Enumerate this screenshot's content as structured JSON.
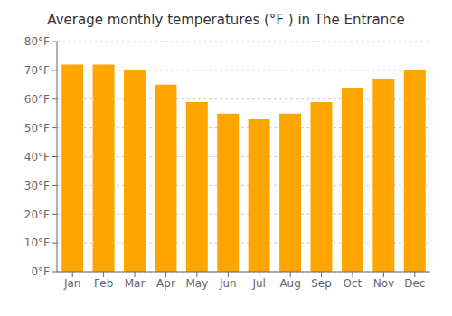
{
  "chart_data": {
    "type": "bar",
    "title": "Average monthly temperatures (°F ) in The Entrance",
    "categories": [
      "Jan",
      "Feb",
      "Mar",
      "Apr",
      "May",
      "Jun",
      "Jul",
      "Aug",
      "Sep",
      "Oct",
      "Nov",
      "Dec"
    ],
    "values": [
      72,
      72,
      70,
      65,
      59,
      55,
      53,
      55,
      59,
      64,
      67,
      70
    ],
    "color": "#FFA500",
    "ylim": [
      0,
      80
    ],
    "yticks": [
      {
        "value": 0,
        "label": "0°F"
      },
      {
        "value": 10,
        "label": "10°F"
      },
      {
        "value": 20,
        "label": "20°F"
      },
      {
        "value": 30,
        "label": "30°F"
      },
      {
        "value": 40,
        "label": "40°F"
      },
      {
        "value": 50,
        "label": "50°F"
      },
      {
        "value": 60,
        "label": "60°F"
      },
      {
        "value": 70,
        "label": "70°F"
      },
      {
        "value": 80,
        "label": "80°F"
      }
    ],
    "grid": true
  }
}
